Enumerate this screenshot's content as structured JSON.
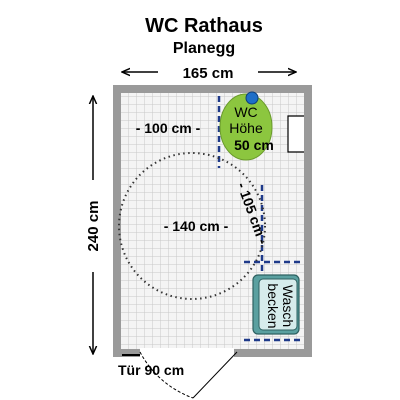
{
  "title": "WC Rathaus",
  "subtitle": "Planegg",
  "dimensions": {
    "width": "165 cm",
    "height": "240 cm",
    "free_width": "- 100 cm -",
    "turning_circle": "- 140 cm -",
    "right_clearance": "- 105 cm -",
    "door": "Tür 90 cm"
  },
  "fixtures": {
    "wc_line1": "WC",
    "wc_line2": "Höhe",
    "wc_line3": "50 cm",
    "sink_line1": "Wasch",
    "sink_line2": "becken"
  },
  "colors": {
    "wall": "#9a9a9a",
    "floor_tile": "#f2f2f2",
    "grout": "#c8c8c8",
    "wc": "#8cc63f",
    "sink": "#5aa0a0",
    "grab_bar": "#1f3a8a",
    "dot": "#1e6fc8"
  }
}
